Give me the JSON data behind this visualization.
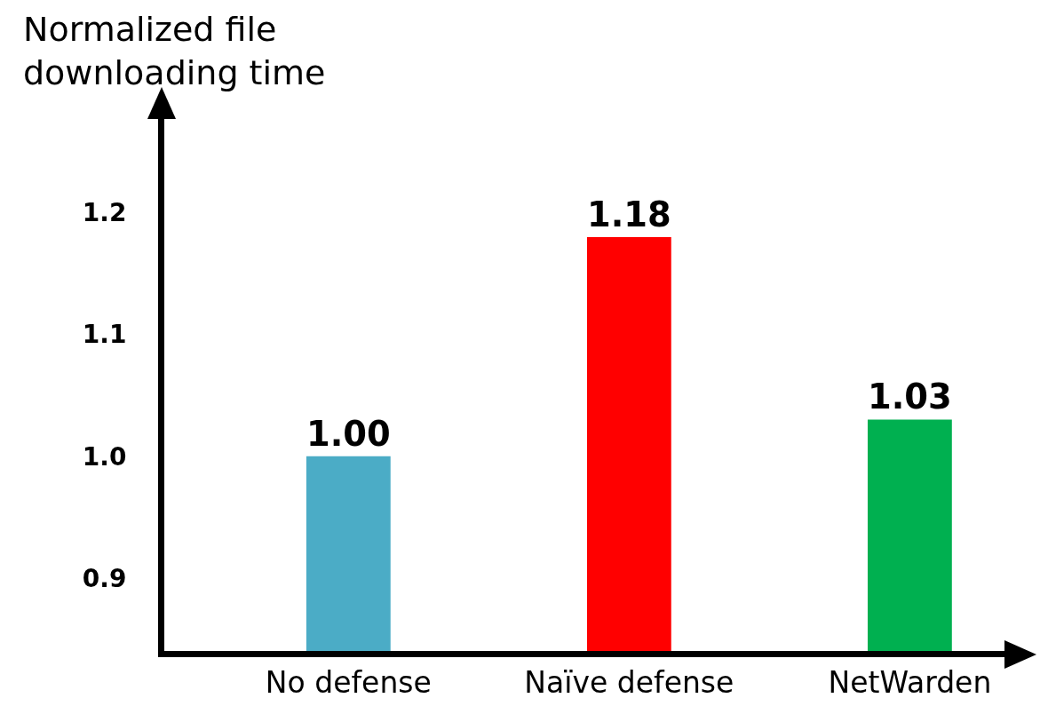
{
  "chart_data": {
    "type": "bar",
    "ylabel": "Normalized file downloading time",
    "categories": [
      "No defense",
      "Naïve defense",
      "NetWarden"
    ],
    "values": [
      1.0,
      1.18,
      1.03
    ],
    "value_labels": [
      "1.00",
      "1.18",
      "1.03"
    ],
    "colors": [
      "#4bacc6",
      "#ff0000",
      "#00b050"
    ],
    "ylim": [
      0.84,
      1.28
    ],
    "yticks": [
      0.9,
      {
        "value": 1.0,
        "label": "1.0"
      },
      1.1,
      1.2
    ],
    "grid": false
  }
}
